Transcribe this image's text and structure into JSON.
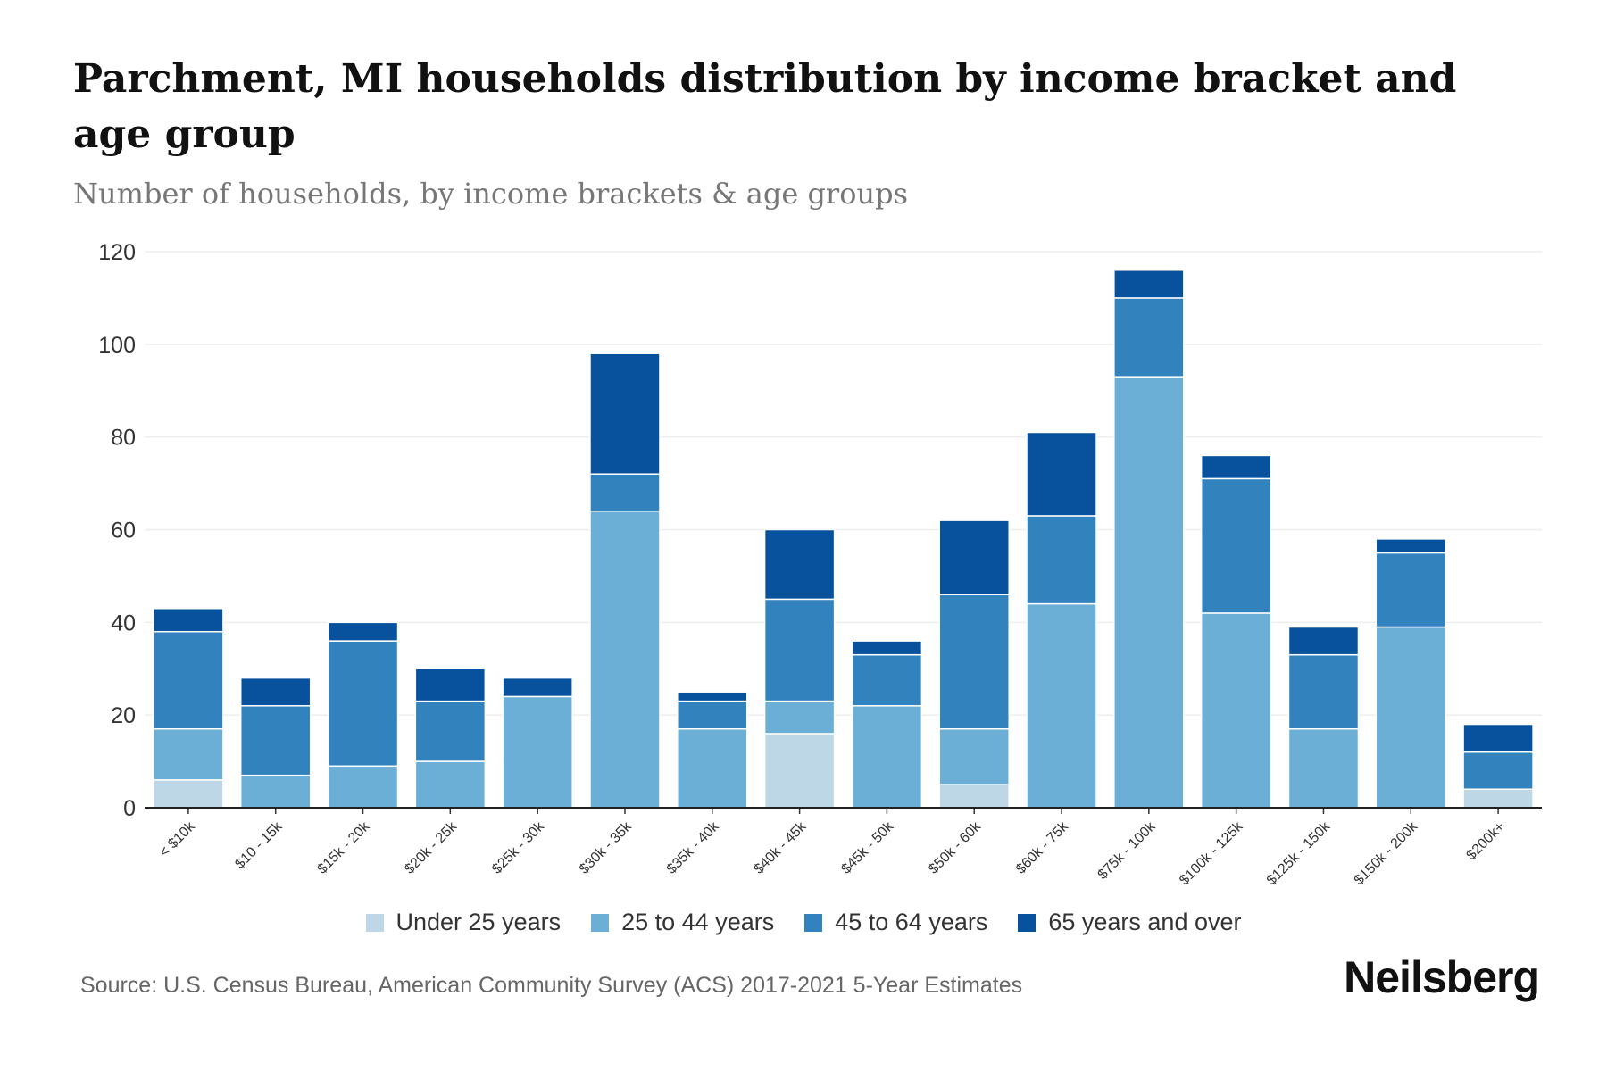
{
  "title": "Parchment, MI households distribution by income bracket and age group",
  "subtitle": "Number of households, by income brackets & age groups",
  "source": "Source: U.S. Census Bureau, American Community Survey (ACS) 2017-2021 5-Year Estimates",
  "logo": "Neilsberg",
  "chart_data": {
    "type": "bar",
    "stacked": true,
    "title": "Parchment, MI households distribution by income bracket and age group",
    "xlabel": "",
    "ylabel": "Number of households",
    "ylim": [
      0,
      120
    ],
    "yticks": [
      0,
      20,
      40,
      60,
      80,
      100,
      120
    ],
    "grid": true,
    "legend_position": "bottom",
    "categories": [
      "< $10k",
      "$10 - 15k",
      "$15k - 20k",
      "$20k - 25k",
      "$25k - 30k",
      "$30k - 35k",
      "$35k - 40k",
      "$40k - 45k",
      "$45k - 50k",
      "$50k - 60k",
      "$60k - 75k",
      "$75k - 100k",
      "$100k - 125k",
      "$125k - 150k",
      "$150k - 200k",
      "$200k+"
    ],
    "series": [
      {
        "name": "Under 25 years",
        "color": "#bdd7e7",
        "values": [
          6,
          0,
          0,
          0,
          0,
          0,
          0,
          16,
          0,
          5,
          0,
          0,
          0,
          0,
          0,
          4
        ]
      },
      {
        "name": "25 to 44 years",
        "color": "#6baed6",
        "values": [
          11,
          7,
          9,
          10,
          24,
          64,
          17,
          7,
          22,
          12,
          44,
          93,
          42,
          17,
          39,
          0
        ]
      },
      {
        "name": "45 to 64 years",
        "color": "#3182bd",
        "values": [
          21,
          15,
          27,
          13,
          0,
          8,
          6,
          22,
          11,
          29,
          19,
          17,
          29,
          16,
          16,
          8
        ]
      },
      {
        "name": "65 years and over",
        "color": "#08519c",
        "values": [
          5,
          6,
          4,
          7,
          4,
          26,
          2,
          15,
          3,
          16,
          18,
          6,
          5,
          6,
          3,
          6
        ]
      }
    ]
  }
}
